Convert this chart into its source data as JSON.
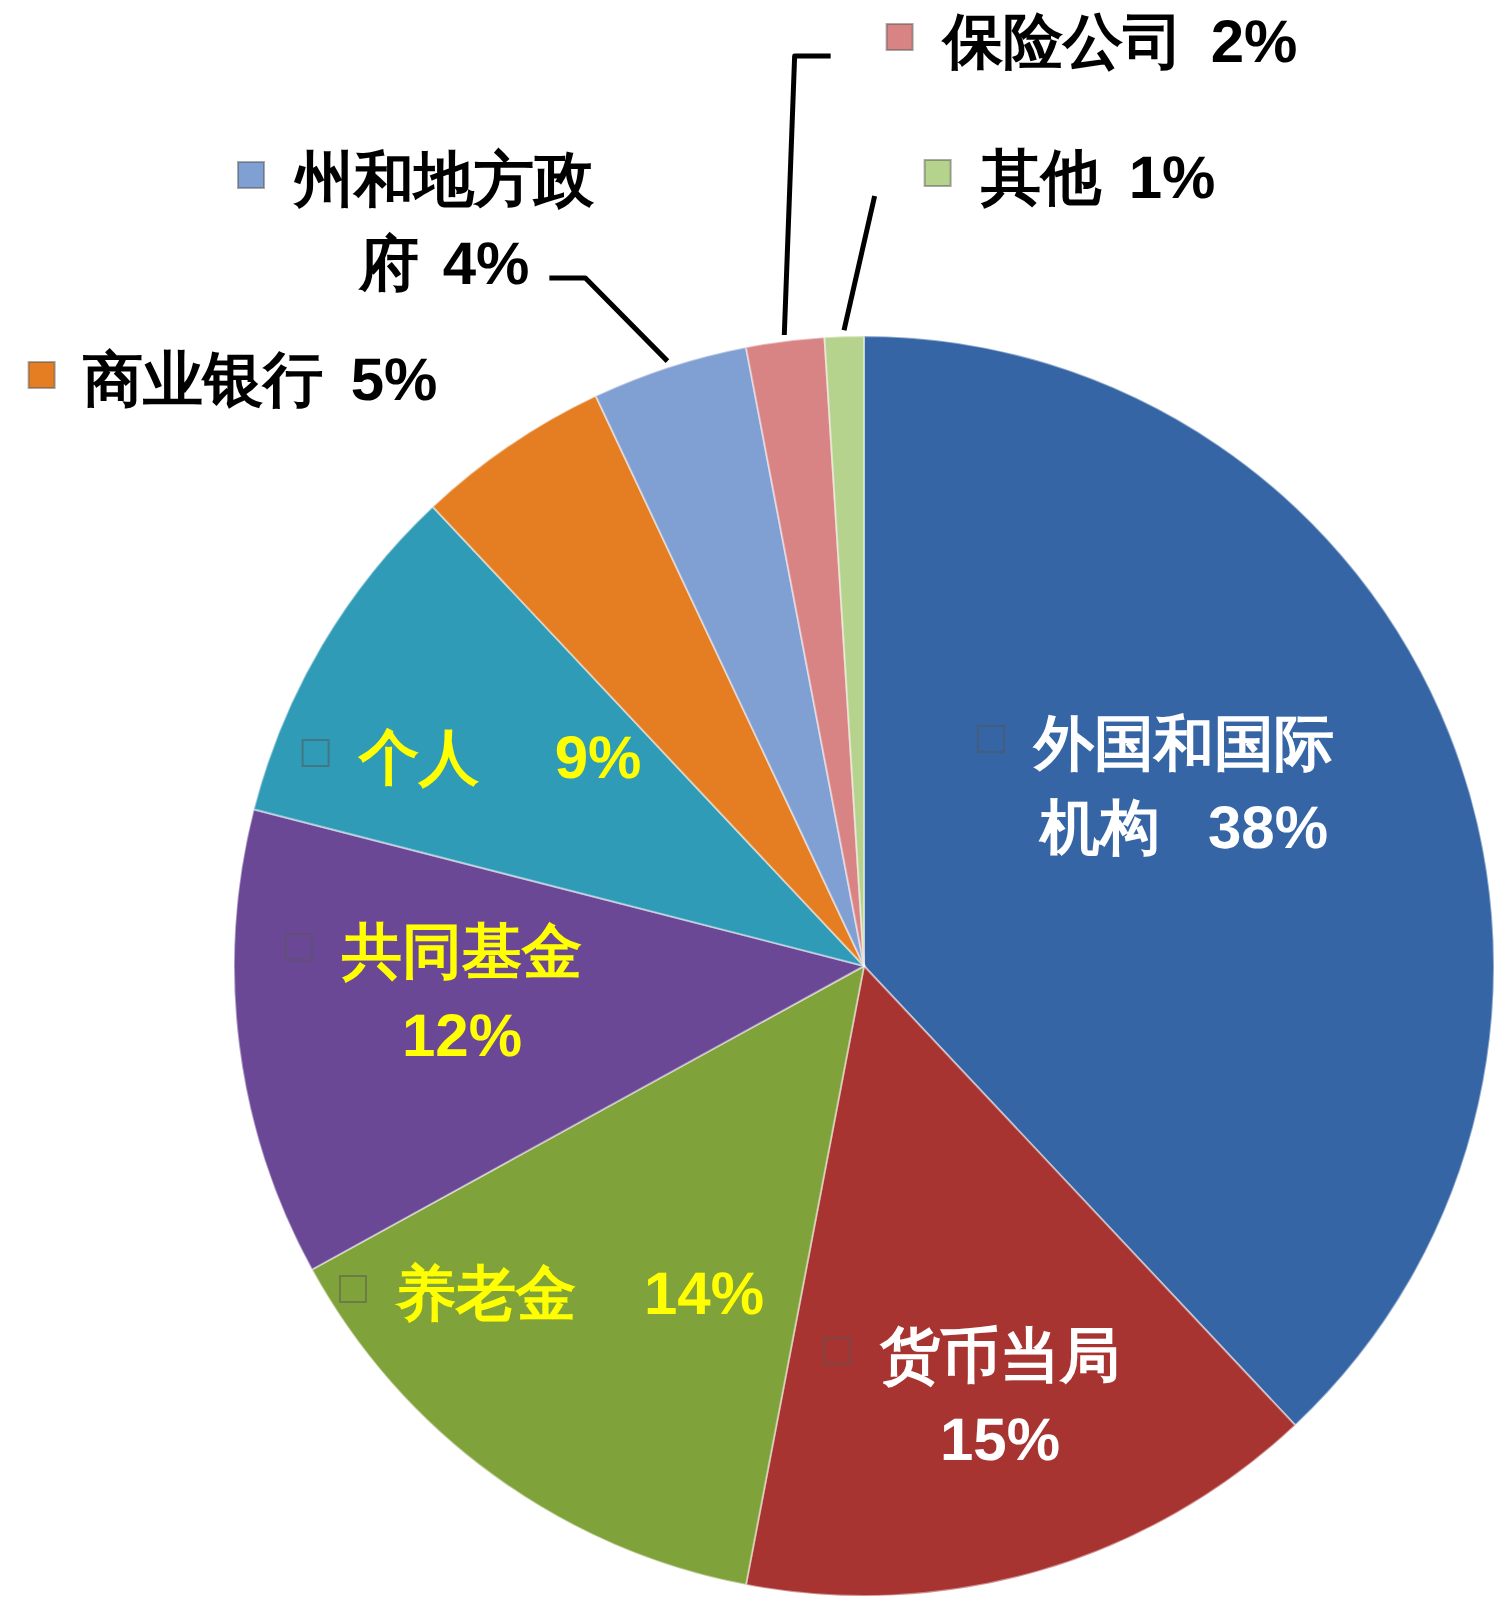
{
  "chart_data": {
    "type": "pie",
    "categories": [
      "外国和国际机构",
      "货币当局",
      "养老金",
      "共同基金",
      "个人",
      "商业银行",
      "州和地方政府",
      "保险公司",
      "其他"
    ],
    "values": [
      38,
      15,
      14,
      12,
      9,
      5,
      4,
      2,
      1
    ],
    "colors": [
      "#3565a5",
      "#a83431",
      "#80a23a",
      "#6b4896",
      "#2f9bb6",
      "#e57e22",
      "#809fd2",
      "#d98484",
      "#b6d38d"
    ],
    "value_labels": [
      "38%",
      "15%",
      "14%",
      "12%",
      "9%",
      "5%",
      "4%",
      "2%",
      "1%"
    ],
    "legend": "left"
  }
}
